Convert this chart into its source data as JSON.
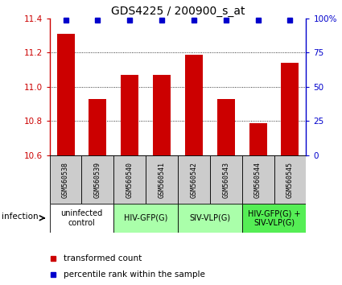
{
  "title": "GDS4225 / 200900_s_at",
  "samples": [
    "GSM560538",
    "GSM560539",
    "GSM560540",
    "GSM560541",
    "GSM560542",
    "GSM560543",
    "GSM560544",
    "GSM560545"
  ],
  "bar_values": [
    11.31,
    10.93,
    11.07,
    11.07,
    11.19,
    10.93,
    10.79,
    11.14
  ],
  "ylim": [
    10.6,
    11.4
  ],
  "yticks": [
    10.6,
    10.8,
    11.0,
    11.2,
    11.4
  ],
  "y2ticks": [
    0,
    25,
    50,
    75,
    100
  ],
  "bar_color": "#cc0000",
  "percentile_color": "#0000cc",
  "groups": [
    {
      "label": "uninfected\ncontrol",
      "start": 0,
      "end": 2,
      "color": "#ffffff"
    },
    {
      "label": "HIV-GFP(G)",
      "start": 2,
      "end": 4,
      "color": "#aaffaa"
    },
    {
      "label": "SIV-VLP(G)",
      "start": 4,
      "end": 6,
      "color": "#aaffaa"
    },
    {
      "label": "HIV-GFP(G) +\nSIV-VLP(G)",
      "start": 6,
      "end": 8,
      "color": "#55ee55"
    }
  ],
  "infection_label": "infection",
  "legend_items": [
    {
      "label": "transformed count",
      "color": "#cc0000",
      "marker": "s"
    },
    {
      "label": "percentile rank within the sample",
      "color": "#0000cc",
      "marker": "s"
    }
  ],
  "sample_bg_color": "#cccccc",
  "bar_width": 0.55,
  "title_fontsize": 10,
  "tick_fontsize": 7.5,
  "sample_fontsize": 6,
  "group_fontsize": 7,
  "legend_fontsize": 7.5
}
